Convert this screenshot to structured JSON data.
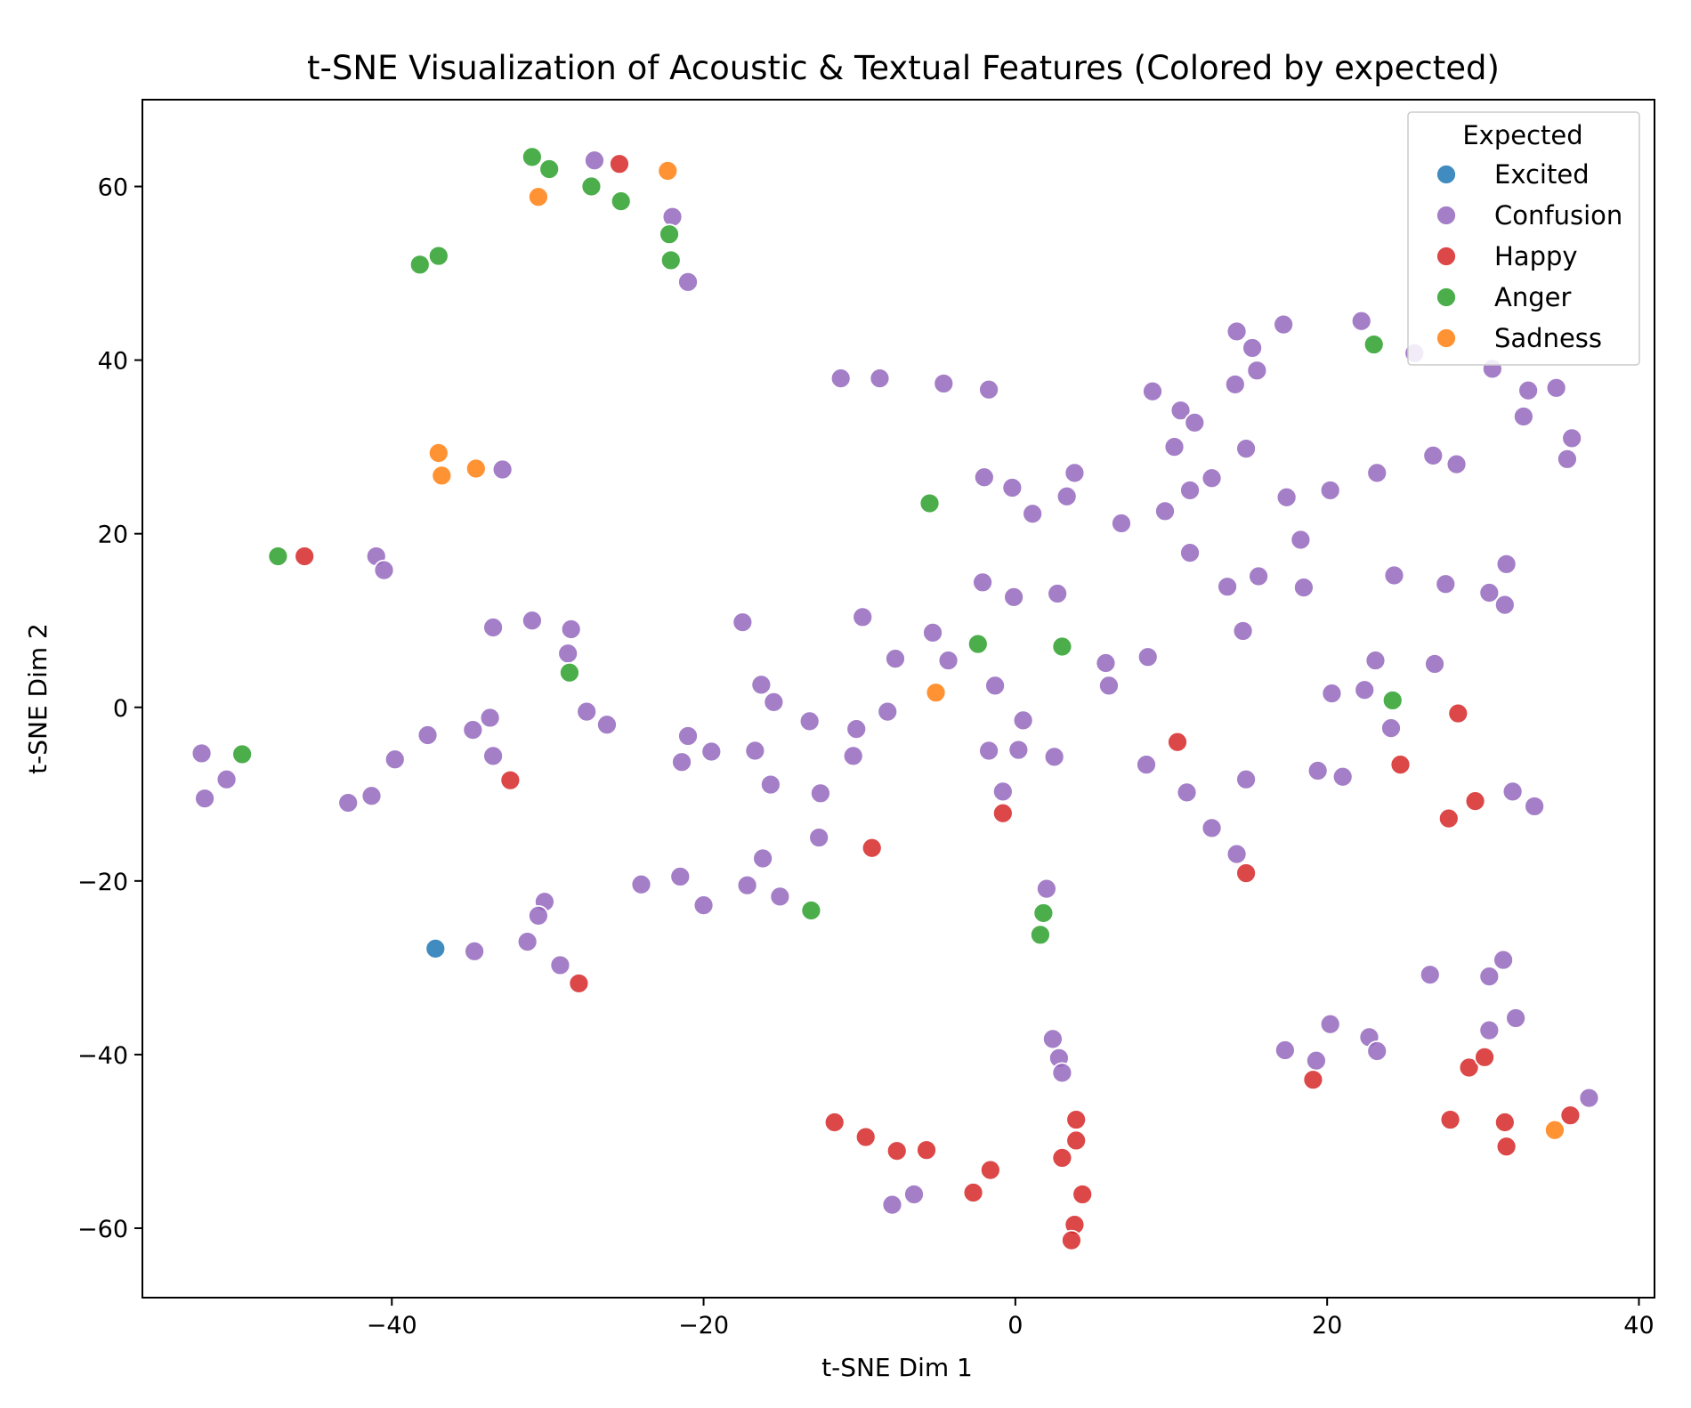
{
  "chart_data": {
    "type": "scatter",
    "title": "t-SNE Visualization of Acoustic & Textual Features (Colored by expected)",
    "xlabel": "t-SNE Dim 1",
    "ylabel": "t-SNE Dim 2",
    "xlim": [
      -56,
      41
    ],
    "ylim": [
      -68,
      70
    ],
    "xticks": [
      -40,
      -20,
      0,
      20,
      40
    ],
    "yticks": [
      -60,
      -40,
      -20,
      0,
      20,
      40,
      60
    ],
    "grid": false,
    "legend": {
      "title": "Expected",
      "placement": "top-right"
    },
    "series": [
      {
        "name": "Excited",
        "color": "#1f77b4",
        "points": [
          [
            -37.2,
            -27.8
          ]
        ]
      },
      {
        "name": "Confusion",
        "color": "#9467bd",
        "points": [
          [
            -27,
            63
          ],
          [
            -22,
            56.5
          ],
          [
            -21,
            49
          ],
          [
            -32.9,
            27.4
          ],
          [
            -41,
            17.4
          ],
          [
            -40.5,
            15.8
          ],
          [
            -33.5,
            9.2
          ],
          [
            -31,
            10
          ],
          [
            -28.5,
            9
          ],
          [
            -28.7,
            6.2
          ],
          [
            -27.5,
            -0.5
          ],
          [
            -26.2,
            -2
          ],
          [
            -33.7,
            -1.2
          ],
          [
            -34.8,
            -2.6
          ],
          [
            -37.7,
            -3.2
          ],
          [
            -39.8,
            -6
          ],
          [
            -33.5,
            -5.6
          ],
          [
            -41.3,
            -10.2
          ],
          [
            -42.8,
            -11
          ],
          [
            -52.2,
            -5.3
          ],
          [
            -50.6,
            -8.3
          ],
          [
            -52.0,
            -10.5
          ],
          [
            -24,
            -20.4
          ],
          [
            -21.5,
            -19.5
          ],
          [
            -20,
            -22.8
          ],
          [
            -30.2,
            -22.4
          ],
          [
            -30.6,
            -24
          ],
          [
            -31.3,
            -27
          ],
          [
            -34.7,
            -28.1
          ],
          [
            -29.2,
            -29.7
          ],
          [
            -17.5,
            9.8
          ],
          [
            -16.3,
            2.6
          ],
          [
            -15.5,
            0.6
          ],
          [
            -21,
            -3.3
          ],
          [
            -19.5,
            -5.1
          ],
          [
            -21.4,
            -6.3
          ],
          [
            -16.7,
            -5
          ],
          [
            -15.7,
            -8.9
          ],
          [
            -13.2,
            -1.6
          ],
          [
            -12.5,
            -9.9
          ],
          [
            -10.2,
            -2.5
          ],
          [
            -10.4,
            -5.6
          ],
          [
            -12.6,
            -15
          ],
          [
            -16.2,
            -17.4
          ],
          [
            -17.2,
            -20.5
          ],
          [
            -15.1,
            -21.8
          ],
          [
            -11.2,
            37.9
          ],
          [
            -8.7,
            37.9
          ],
          [
            -4.6,
            37.3
          ],
          [
            -1.7,
            36.6
          ],
          [
            -9.8,
            10.4
          ],
          [
            -7.7,
            5.6
          ],
          [
            -5.3,
            8.6
          ],
          [
            -4.3,
            5.4
          ],
          [
            -8.2,
            -0.5
          ],
          [
            -2,
            26.5
          ],
          [
            -0.2,
            25.3
          ],
          [
            1.1,
            22.3
          ],
          [
            3.3,
            24.3
          ],
          [
            3.8,
            27
          ],
          [
            -2.1,
            14.4
          ],
          [
            -0.1,
            12.7
          ],
          [
            2.7,
            13.1
          ],
          [
            -1.3,
            2.5
          ],
          [
            0.5,
            -1.5
          ],
          [
            -1.7,
            -5
          ],
          [
            0.2,
            -4.9
          ],
          [
            2.5,
            -5.7
          ],
          [
            -0.8,
            -9.7
          ],
          [
            2.0,
            -20.9
          ],
          [
            5.8,
            5.1
          ],
          [
            6.0,
            2.5
          ],
          [
            8.5,
            5.8
          ],
          [
            8.4,
            -6.6
          ],
          [
            8.8,
            36.4
          ],
          [
            10.6,
            34.2
          ],
          [
            11.5,
            32.8
          ],
          [
            10.2,
            30
          ],
          [
            6.8,
            21.2
          ],
          [
            9.6,
            22.6
          ],
          [
            11.2,
            25
          ],
          [
            12.6,
            26.4
          ],
          [
            11.2,
            17.8
          ],
          [
            14.2,
            43.3
          ],
          [
            15.2,
            41.4
          ],
          [
            17.2,
            44.1
          ],
          [
            14.1,
            37.2
          ],
          [
            15.5,
            38.8
          ],
          [
            14.8,
            29.8
          ],
          [
            13.6,
            13.9
          ],
          [
            15.6,
            15.1
          ],
          [
            14.6,
            8.8
          ],
          [
            17.4,
            24.2
          ],
          [
            18.3,
            19.3
          ],
          [
            18.5,
            13.8
          ],
          [
            20.2,
            25
          ],
          [
            22.2,
            44.5
          ],
          [
            23.2,
            27
          ],
          [
            25.6,
            40.8
          ],
          [
            26.8,
            29
          ],
          [
            28.3,
            28
          ],
          [
            24.3,
            15.2
          ],
          [
            27.6,
            14.2
          ],
          [
            23.1,
            5.4
          ],
          [
            26.9,
            5
          ],
          [
            20.3,
            1.6
          ],
          [
            22.4,
            2
          ],
          [
            24.1,
            -2.4
          ],
          [
            19.4,
            -7.3
          ],
          [
            21.0,
            -8
          ],
          [
            11,
            -9.8
          ],
          [
            14.8,
            -8.3
          ],
          [
            12.6,
            -13.9
          ],
          [
            14.2,
            -16.9
          ],
          [
            30.6,
            39
          ],
          [
            32.6,
            33.5
          ],
          [
            32.9,
            36.5
          ],
          [
            34.7,
            36.8
          ],
          [
            35.7,
            31
          ],
          [
            35.4,
            28.6
          ],
          [
            31.5,
            16.5
          ],
          [
            30.4,
            13.2
          ],
          [
            31.4,
            11.8
          ],
          [
            31.9,
            -9.7
          ],
          [
            33.3,
            -11.4
          ],
          [
            26.6,
            -30.8
          ],
          [
            30.4,
            -31
          ],
          [
            31.3,
            -29.1
          ],
          [
            30.4,
            -37.2
          ],
          [
            32.1,
            -35.8
          ],
          [
            20.2,
            -36.5
          ],
          [
            17.3,
            -39.5
          ],
          [
            19.3,
            -40.7
          ],
          [
            22.7,
            -38
          ],
          [
            23.2,
            -39.6
          ],
          [
            2.4,
            -38.2
          ],
          [
            2.8,
            -40.4
          ],
          [
            3.0,
            -42.1
          ],
          [
            -7.9,
            -57.3
          ],
          [
            -6.5,
            -56.1
          ],
          [
            36.8,
            -45
          ]
        ]
      },
      {
        "name": "Happy",
        "color": "#d62728",
        "points": [
          [
            -25.4,
            62.6
          ],
          [
            -45.6,
            17.4
          ],
          [
            -32.4,
            -8.4
          ],
          [
            -28,
            -31.8
          ],
          [
            -0.8,
            -12.2
          ],
          [
            -9.2,
            -16.2
          ],
          [
            10.4,
            -4
          ],
          [
            14.8,
            -19.1
          ],
          [
            24.7,
            -6.6
          ],
          [
            28.4,
            -0.7
          ],
          [
            27.8,
            -12.8
          ],
          [
            29.5,
            -10.8
          ],
          [
            19.1,
            -42.9
          ],
          [
            29.1,
            -41.5
          ],
          [
            30.1,
            -40.3
          ],
          [
            27.9,
            -47.5
          ],
          [
            31.4,
            -47.8
          ],
          [
            31.5,
            -50.6
          ],
          [
            35.6,
            -47
          ],
          [
            -11.6,
            -47.8
          ],
          [
            -9.6,
            -49.5
          ],
          [
            -7.6,
            -51.1
          ],
          [
            -5.7,
            -51
          ],
          [
            -1.6,
            -53.3
          ],
          [
            -2.7,
            -55.9
          ],
          [
            3.9,
            -47.5
          ],
          [
            3.9,
            -49.9
          ],
          [
            3.0,
            -51.9
          ],
          [
            4.3,
            -56.1
          ],
          [
            3.8,
            -59.6
          ],
          [
            3.6,
            -61.4
          ]
        ]
      },
      {
        "name": "Anger",
        "color": "#2ca02c",
        "points": [
          [
            -31,
            63.4
          ],
          [
            -29.9,
            62
          ],
          [
            -27.2,
            60
          ],
          [
            -25.3,
            58.3
          ],
          [
            -22.2,
            54.5
          ],
          [
            -22.1,
            51.5
          ],
          [
            -38.2,
            51
          ],
          [
            -37,
            52
          ],
          [
            -47.3,
            17.4
          ],
          [
            -28.6,
            4
          ],
          [
            -49.6,
            -5.4
          ],
          [
            -13.1,
            -23.4
          ],
          [
            -5.5,
            23.5
          ],
          [
            -2.4,
            7.3
          ],
          [
            3.0,
            7
          ],
          [
            1.8,
            -23.7
          ],
          [
            1.6,
            -26.2
          ],
          [
            23,
            41.8
          ],
          [
            24.2,
            0.8
          ]
        ]
      },
      {
        "name": "Sadness",
        "color": "#ff7f0e",
        "points": [
          [
            -30.6,
            58.8
          ],
          [
            -22.3,
            61.8
          ],
          [
            -37.0,
            29.3
          ],
          [
            -36.8,
            26.7
          ],
          [
            -34.6,
            27.5
          ],
          [
            -5.1,
            1.7
          ],
          [
            34.6,
            -48.7
          ]
        ]
      }
    ]
  }
}
